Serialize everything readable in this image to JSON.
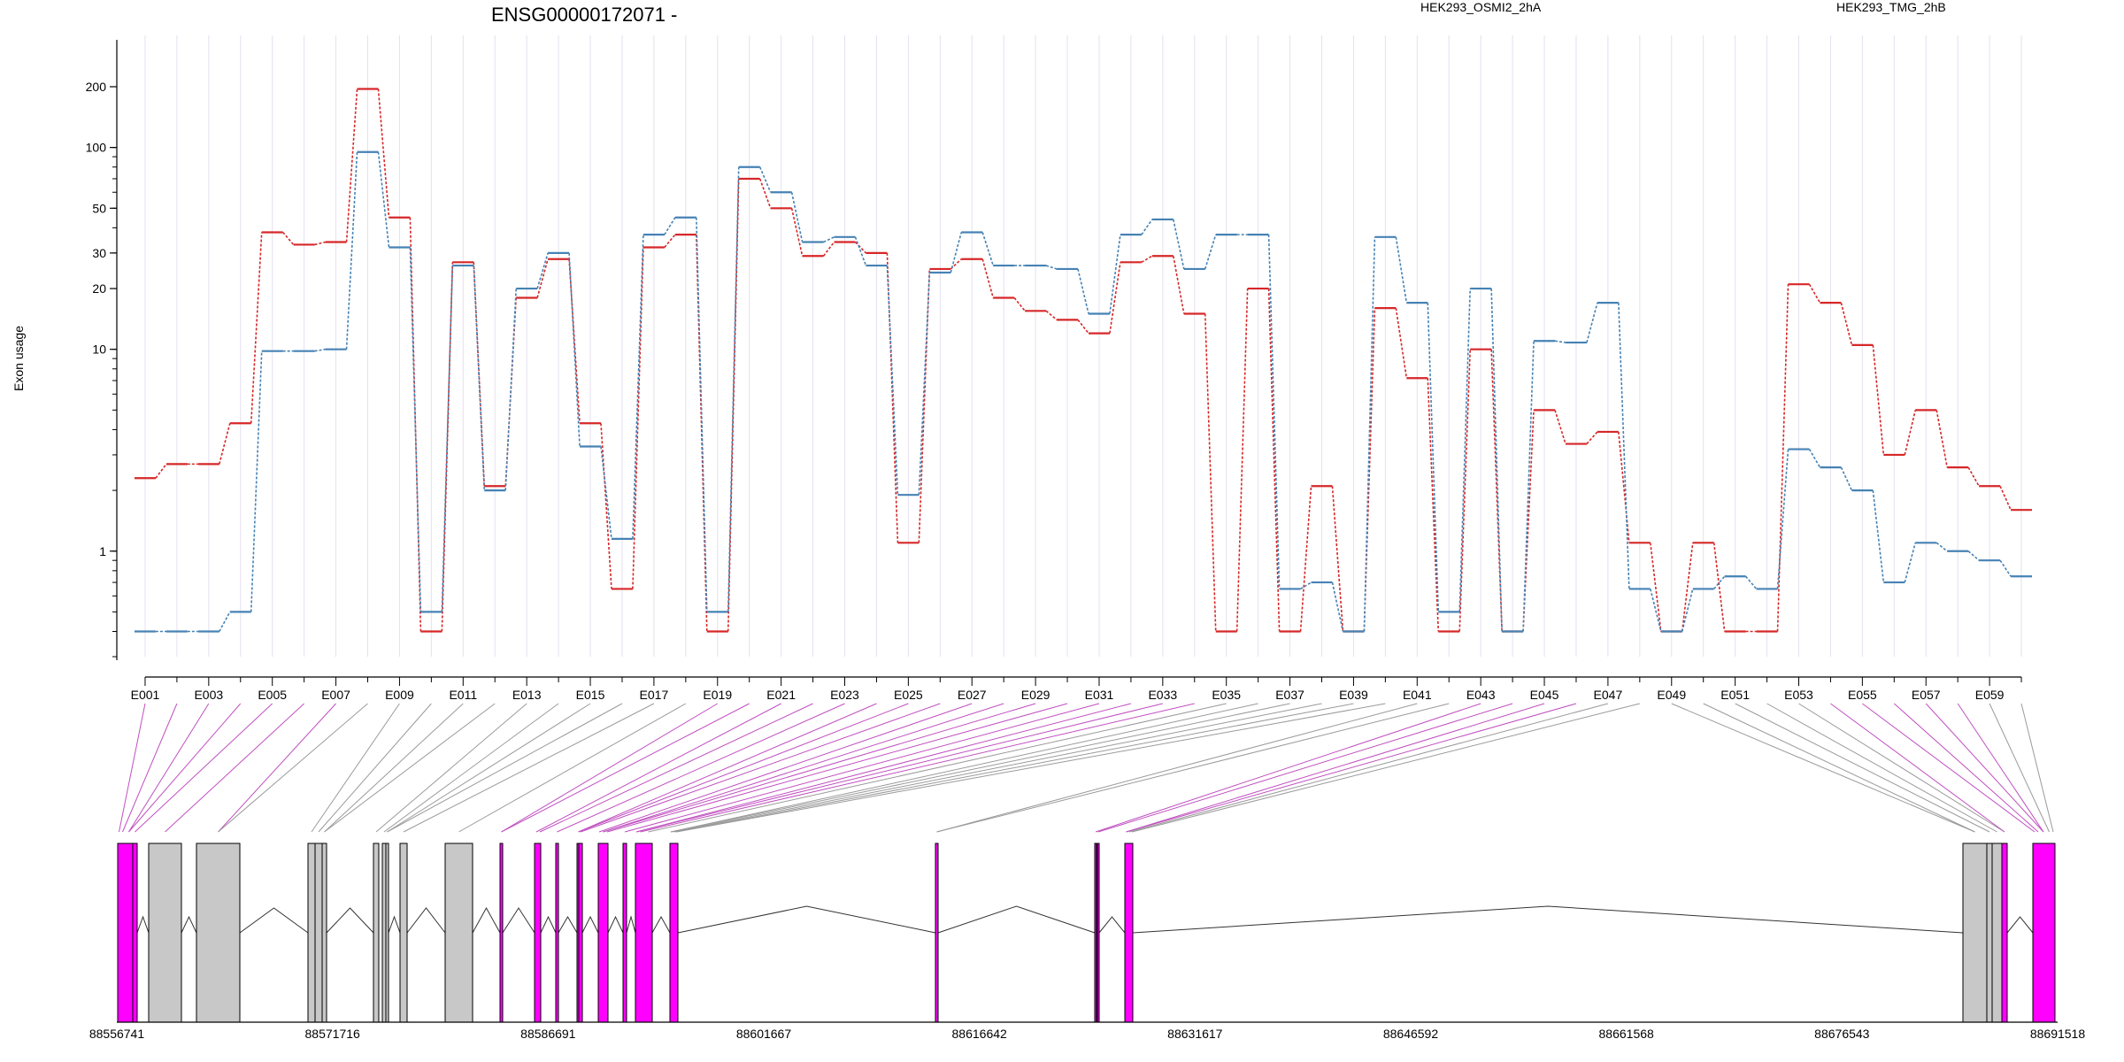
{
  "chart_data": {
    "type": "line",
    "title": "ENSG00000172071 -",
    "xlabel": "",
    "ylabel": "Exon usage",
    "yscale": "log",
    "ylim": [
      0.3,
      260
    ],
    "y_ticks": [
      1,
      10,
      20,
      30,
      50,
      100,
      200
    ],
    "exon_labels": [
      "E001",
      "E003",
      "E005",
      "E007",
      "E009",
      "E011",
      "E013",
      "E015",
      "E017",
      "E019",
      "E021",
      "E023",
      "E025",
      "E027",
      "E029",
      "E031",
      "E033",
      "E035",
      "E037",
      "E039",
      "E041",
      "E043",
      "E045",
      "E047",
      "E049",
      "E051",
      "E053",
      "E055",
      "E057",
      "E059"
    ],
    "exons": [
      "E001",
      "E002",
      "E003",
      "E004",
      "E005",
      "E006",
      "E007",
      "E008",
      "E009",
      "E010",
      "E011",
      "E012",
      "E013",
      "E014",
      "E015",
      "E016",
      "E017",
      "E018",
      "E019",
      "E020",
      "E021",
      "E022",
      "E023",
      "E024",
      "E025",
      "E026",
      "E027",
      "E028",
      "E029",
      "E030",
      "E031",
      "E032",
      "E033",
      "E034",
      "E035",
      "E036",
      "E037",
      "E038",
      "E039",
      "E040",
      "E041",
      "E042",
      "E043",
      "E044",
      "E045",
      "E046",
      "E047",
      "E048",
      "E049",
      "E050",
      "E051",
      "E052",
      "E053",
      "E054",
      "E055",
      "E056",
      "E057",
      "E058",
      "E059",
      "E060"
    ],
    "series": [
      {
        "name": "HEK293_OSMI2_2hA",
        "color": "#d62728",
        "values": [
          2.3,
          2.7,
          2.7,
          4.3,
          38,
          33,
          34,
          195,
          45,
          0.4,
          27,
          2.1,
          18,
          28,
          4.3,
          0.65,
          32,
          37,
          0.4,
          70,
          50,
          29,
          34,
          30,
          1.1,
          25,
          28,
          18,
          15.5,
          14,
          12,
          27,
          29,
          15,
          0.4,
          20,
          0.4,
          2.1,
          0.4,
          16,
          7.2,
          0.4,
          10,
          0.4,
          5,
          3.4,
          3.9,
          1.1,
          0.4,
          1.1,
          0.4,
          0.4,
          21,
          17,
          10.5,
          3,
          5,
          2.6,
          2.1,
          1.6
        ]
      },
      {
        "name": "HEK293_TMG_2hB",
        "color": "#4682b4",
        "values": [
          0.4,
          0.4,
          0.4,
          0.5,
          9.8,
          9.8,
          10,
          95,
          32,
          0.5,
          26,
          2,
          20,
          30,
          3.3,
          1.15,
          37,
          45,
          0.5,
          80,
          60,
          34,
          36,
          26,
          1.9,
          24,
          38,
          26,
          26,
          25,
          15,
          37,
          44,
          25,
          37,
          37,
          0.65,
          0.7,
          0.4,
          36,
          17,
          0.5,
          20,
          0.4,
          11,
          10.8,
          17,
          0.65,
          0.4,
          0.65,
          0.75,
          0.65,
          3.2,
          2.6,
          2,
          0.7,
          1.1,
          1,
          0.9,
          0.75
        ]
      }
    ],
    "genomic_ticks": [
      "88556741",
      "88571716",
      "88586691",
      "88601667",
      "88616642",
      "88631617",
      "88646592",
      "88661568",
      "88676543",
      "88691518"
    ]
  },
  "colors": {
    "osmi": "#d62728",
    "tmg": "#4682b4",
    "highlight": "#ff00ff",
    "exon_gray": "#c8c8c8",
    "link_gray": "#9a9a9a",
    "link_magenta": "#c050c0"
  },
  "highlighted_exons": [
    "E001",
    "E002",
    "E003",
    "E004",
    "E005",
    "E006",
    "E007",
    "E019",
    "E020",
    "E021",
    "E022",
    "E023",
    "E024",
    "E025",
    "E026",
    "E027",
    "E028",
    "E029",
    "E030",
    "E031",
    "E032",
    "E033",
    "E034",
    "E043",
    "E044",
    "E045",
    "E046",
    "E054",
    "E055",
    "E056",
    "E057",
    "E058"
  ]
}
